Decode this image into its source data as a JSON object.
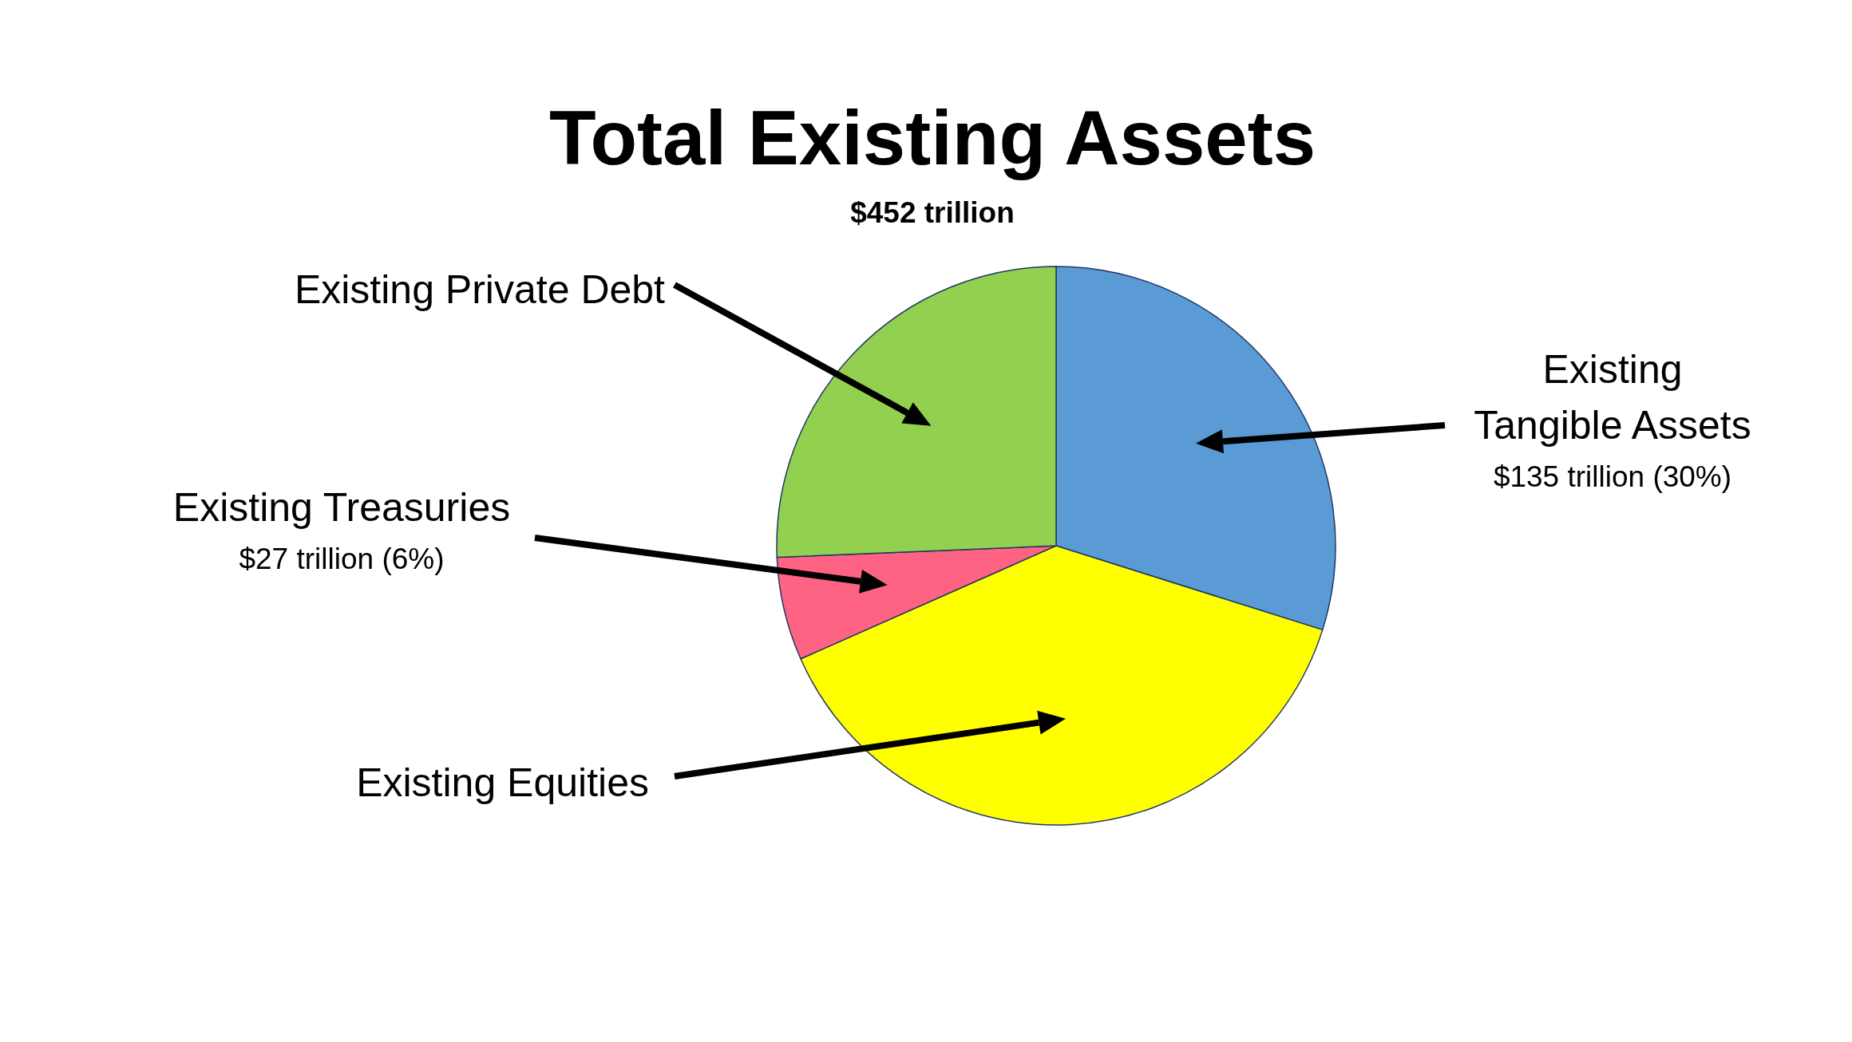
{
  "chart_data": {
    "type": "pie",
    "title": "Total Existing Assets",
    "subtitle": "$452 trillion",
    "categories": [
      "Existing Tangible Assets",
      "Existing Equities",
      "Existing Treasuries",
      "Existing Private Debt"
    ],
    "values": [
      135,
      174,
      27,
      116
    ],
    "colors": [
      "#5b9bd5",
      "#ffff00",
      "#ff6384",
      "#92d050"
    ],
    "value_labels": [
      "$135 trillion (30%)",
      null,
      "$27 trillion (6%)",
      null
    ],
    "legend": false
  }
}
